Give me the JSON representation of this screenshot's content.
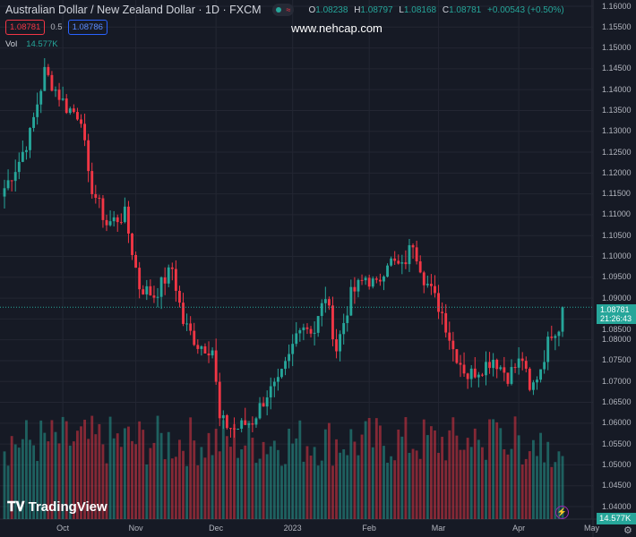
{
  "header": {
    "symbol": "Australian Dollar / New Zealand Dollar · 1D · FXCM",
    "ohlc": {
      "o_label": "O",
      "o": "1.08238",
      "h_label": "H",
      "h": "1.08797",
      "l_label": "L",
      "l": "1.08168",
      "c_label": "C",
      "c": "1.08781",
      "change": "+0.00543 (+0.50%)"
    },
    "sell_price": "1.08781",
    "spread": "0.5",
    "buy_price": "1.08786",
    "vol_label": "Vol",
    "vol_value": "14.577K"
  },
  "watermark": "www.nehcap.com",
  "logo_text": "TradingView",
  "price_axis": [
    "1.16000",
    "1.15500",
    "1.15000",
    "1.14500",
    "1.14000",
    "1.13500",
    "1.13000",
    "1.12500",
    "1.12000",
    "1.11500",
    "1.11000",
    "1.10500",
    "1.10000",
    "1.09500",
    "1.09000",
    "1.08500",
    "1.08000",
    "1.07500",
    "1.07000",
    "1.06500",
    "1.06000",
    "1.05500",
    "1.05000",
    "1.04500",
    "1.04000"
  ],
  "current_price": "1.08781",
  "countdown": "21:26:43",
  "volume_tag": "14.577K",
  "time_axis": [
    {
      "label": "Oct",
      "bar": 16
    },
    {
      "label": "Nov",
      "bar": 36
    },
    {
      "label": "Dec",
      "bar": 58
    },
    {
      "label": "2023",
      "bar": 79
    },
    {
      "label": "Feb",
      "bar": 100
    },
    {
      "label": "Mar",
      "bar": 119
    },
    {
      "label": "Apr",
      "bar": 141
    },
    {
      "label": "May",
      "bar": 161
    }
  ],
  "colors": {
    "up": "#26a69a",
    "down": "#f23645",
    "bg": "#161a25",
    "grid": "#232632"
  },
  "chart_data": {
    "type": "candlestick",
    "ylim": [
      1.04,
      1.16
    ],
    "bars": 154,
    "close_waypoints": [
      [
        0,
        1.1164
      ],
      [
        4,
        1.1229
      ],
      [
        7,
        1.1293
      ],
      [
        11,
        1.1443
      ],
      [
        14,
        1.14
      ],
      [
        17,
        1.1358
      ],
      [
        21,
        1.1336
      ],
      [
        23,
        1.1186
      ],
      [
        28,
        1.1078
      ],
      [
        33,
        1.11
      ],
      [
        37,
        1.0928
      ],
      [
        41,
        1.0907
      ],
      [
        46,
        1.0971
      ],
      [
        49,
        1.0842
      ],
      [
        53,
        1.0789
      ],
      [
        57,
        1.0778
      ],
      [
        59,
        1.0606
      ],
      [
        63,
        1.0585
      ],
      [
        68,
        1.0606
      ],
      [
        72,
        1.0671
      ],
      [
        75,
        1.0692
      ],
      [
        78,
        1.0756
      ],
      [
        81,
        1.0842
      ],
      [
        85,
        1.0821
      ],
      [
        88,
        1.0907
      ],
      [
        91,
        1.0778
      ],
      [
        95,
        1.0907
      ],
      [
        99,
        1.095
      ],
      [
        102,
        1.0928
      ],
      [
        105,
        1.0992
      ],
      [
        109,
        1.0971
      ],
      [
        112,
        1.1035
      ],
      [
        115,
        1.095
      ],
      [
        120,
        1.0864
      ],
      [
        123,
        1.0778
      ],
      [
        127,
        1.0714
      ],
      [
        131,
        1.0735
      ],
      [
        134,
        1.0756
      ],
      [
        138,
        1.0714
      ],
      [
        142,
        1.0756
      ],
      [
        144,
        1.0671
      ],
      [
        147,
        1.0735
      ],
      [
        150,
        1.0821
      ],
      [
        152,
        1.0832
      ],
      [
        153,
        1.0878
      ]
    ],
    "volume_max_k": 30
  }
}
